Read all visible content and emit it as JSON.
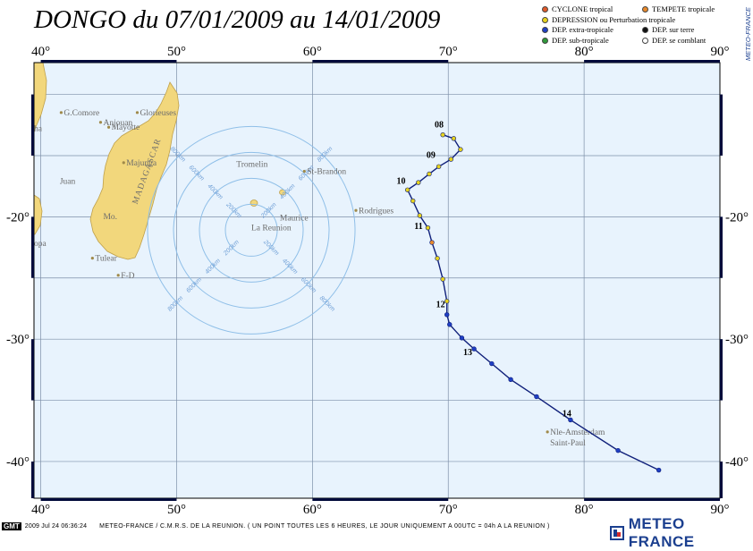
{
  "title": "DONGO du 07/01/2009 au 14/01/2009",
  "legend": [
    {
      "label": "CYCLONE tropical",
      "color": "#e05a2b"
    },
    {
      "label": "TEMPETE tropicale",
      "color": "#e8892c"
    },
    {
      "label": "DEPRESSION ou Perturbation tropicale",
      "color": "#e6d21e"
    },
    {
      "label": "DEP. extra-tropicale",
      "color": "#1f3fc4"
    },
    {
      "label": "DEP. sur terre",
      "color": "#111111"
    },
    {
      "label": "DEP. sub-tropicale",
      "color": "#2f9a3a"
    },
    {
      "label": "DEP. se comblant",
      "color": "#ffffff"
    }
  ],
  "credit_vertical": "METEO-FRANCE",
  "axes": {
    "lon_ticks": [
      "40°",
      "50°",
      "60°",
      "70°",
      "80°",
      "90°"
    ],
    "lon_values": [
      40,
      50,
      60,
      70,
      80,
      90
    ],
    "lat_ticks": [
      "-20°",
      "-30°",
      "-40°"
    ],
    "lat_values": [
      -20,
      -30,
      -40
    ],
    "lon_range": [
      39.5,
      90
    ],
    "lat_range": [
      -43,
      -7.4
    ]
  },
  "places": [
    {
      "name": "G.Comore",
      "lon": 41.7,
      "lat": -11.7,
      "marker": true
    },
    {
      "name": "Anjouan",
      "lon": 44.6,
      "lat": -12.5,
      "marker": true
    },
    {
      "name": "Mayotte",
      "lon": 45.2,
      "lat": -12.9,
      "marker": true
    },
    {
      "name": "Glorieuses",
      "lon": 47.3,
      "lat": -11.7,
      "marker": true
    },
    {
      "name": "Majunga",
      "lon": 46.3,
      "lat": -15.8,
      "marker": true
    },
    {
      "name": "Juan",
      "lon": 41.4,
      "lat": -17.3,
      "marker": false
    },
    {
      "name": "MADAGASCAR",
      "lon": 47.1,
      "lat": -19.0,
      "marker": false,
      "rotate": -70
    },
    {
      "name": "Mo.",
      "lon": 44.6,
      "lat": -20.2,
      "marker": false
    },
    {
      "name": "opa",
      "lon": 39.5,
      "lat": -22.4,
      "marker": false
    },
    {
      "name": "Tulear",
      "lon": 44.0,
      "lat": -23.6,
      "marker": true
    },
    {
      "name": "F-D",
      "lon": 45.9,
      "lat": -25.0,
      "marker": true
    },
    {
      "name": "Tromelin",
      "lon": 54.4,
      "lat": -15.9,
      "marker": false
    },
    {
      "name": "St-Brandon",
      "lon": 59.6,
      "lat": -16.5,
      "marker": true
    },
    {
      "name": "Rodrigues",
      "lon": 63.4,
      "lat": -19.7,
      "marker": true
    },
    {
      "name": "Maurice",
      "lon": 57.6,
      "lat": -20.3,
      "marker": false
    },
    {
      "name": "La Reunion",
      "lon": 55.5,
      "lat": -21.1,
      "marker": false
    },
    {
      "name": "Nle-Amsterdam",
      "lon": 77.5,
      "lat": -37.8,
      "marker": true
    },
    {
      "name": "Saint-Paul",
      "lon": 77.5,
      "lat": -38.7,
      "marker": false
    },
    {
      "name": "ha",
      "lon": 39.5,
      "lat": -13.0,
      "marker": false
    }
  ],
  "range_rings": {
    "center": {
      "lon": 55.5,
      "lat": -21.1
    },
    "rings": [
      {
        "label": "200km"
      },
      {
        "label": "400km"
      },
      {
        "label": "600km"
      },
      {
        "label": "800km"
      }
    ]
  },
  "track": [
    {
      "lon": 69.6,
      "lat": -13.3,
      "cat": "dep"
    },
    {
      "lon": 70.4,
      "lat": -13.6,
      "cat": "dep"
    },
    {
      "lon": 70.9,
      "lat": -14.5,
      "cat": "dep"
    },
    {
      "lon": 70.2,
      "lat": -15.3,
      "cat": "dep"
    },
    {
      "lon": 69.3,
      "lat": -15.9,
      "cat": "dep"
    },
    {
      "lon": 68.6,
      "lat": -16.5,
      "cat": "dep"
    },
    {
      "lon": 67.8,
      "lat": -17.2,
      "cat": "dep"
    },
    {
      "lon": 67.0,
      "lat": -17.8,
      "cat": "dep"
    },
    {
      "lon": 67.4,
      "lat": -18.7,
      "cat": "dep"
    },
    {
      "lon": 67.9,
      "lat": -19.9,
      "cat": "dep"
    },
    {
      "lon": 68.5,
      "lat": -20.9,
      "cat": "dep"
    },
    {
      "lon": 68.8,
      "lat": -22.1,
      "cat": "storm"
    },
    {
      "lon": 69.2,
      "lat": -23.4,
      "cat": "dep"
    },
    {
      "lon": 69.6,
      "lat": -25.1,
      "cat": "dep"
    },
    {
      "lon": 69.9,
      "lat": -26.9,
      "cat": "dep"
    },
    {
      "lon": 69.9,
      "lat": -28.0,
      "cat": "extra"
    },
    {
      "lon": 70.1,
      "lat": -28.8,
      "cat": "extra"
    },
    {
      "lon": 71.0,
      "lat": -29.9,
      "cat": "extra"
    },
    {
      "lon": 71.9,
      "lat": -30.8,
      "cat": "extra"
    },
    {
      "lon": 73.2,
      "lat": -32.0,
      "cat": "extra"
    },
    {
      "lon": 74.6,
      "lat": -33.3,
      "cat": "extra"
    },
    {
      "lon": 76.5,
      "lat": -34.7,
      "cat": "extra"
    },
    {
      "lon": 79.0,
      "lat": -36.6,
      "cat": "extra"
    },
    {
      "lon": 82.5,
      "lat": -39.1,
      "cat": "extra"
    },
    {
      "lon": 85.5,
      "lat": -40.7,
      "cat": "extra"
    }
  ],
  "day_labels": [
    {
      "text": "08",
      "lon": 69.0,
      "lat": -12.7
    },
    {
      "text": "09",
      "lon": 68.4,
      "lat": -15.2
    },
    {
      "text": "10",
      "lon": 66.2,
      "lat": -17.3
    },
    {
      "text": "11",
      "lon": 67.5,
      "lat": -21.0
    },
    {
      "text": "12",
      "lon": 69.1,
      "lat": -27.4
    },
    {
      "text": "13",
      "lon": 71.1,
      "lat": -31.3
    },
    {
      "text": "14",
      "lon": 78.4,
      "lat": -36.3
    }
  ],
  "footer": {
    "gmt_badge": "GMT",
    "gmt_stamp": "2009 Jul 24 06:36:24",
    "credit": "METEO-FRANCE / C.M.R.S. DE LA REUNION.  ( UN POINT TOUTES LES 6 HEURES, LE JOUR UNIQUEMENT A 00UTC = 04h A LA REUNION )"
  },
  "logo": {
    "text": "METEO FRANCE"
  }
}
